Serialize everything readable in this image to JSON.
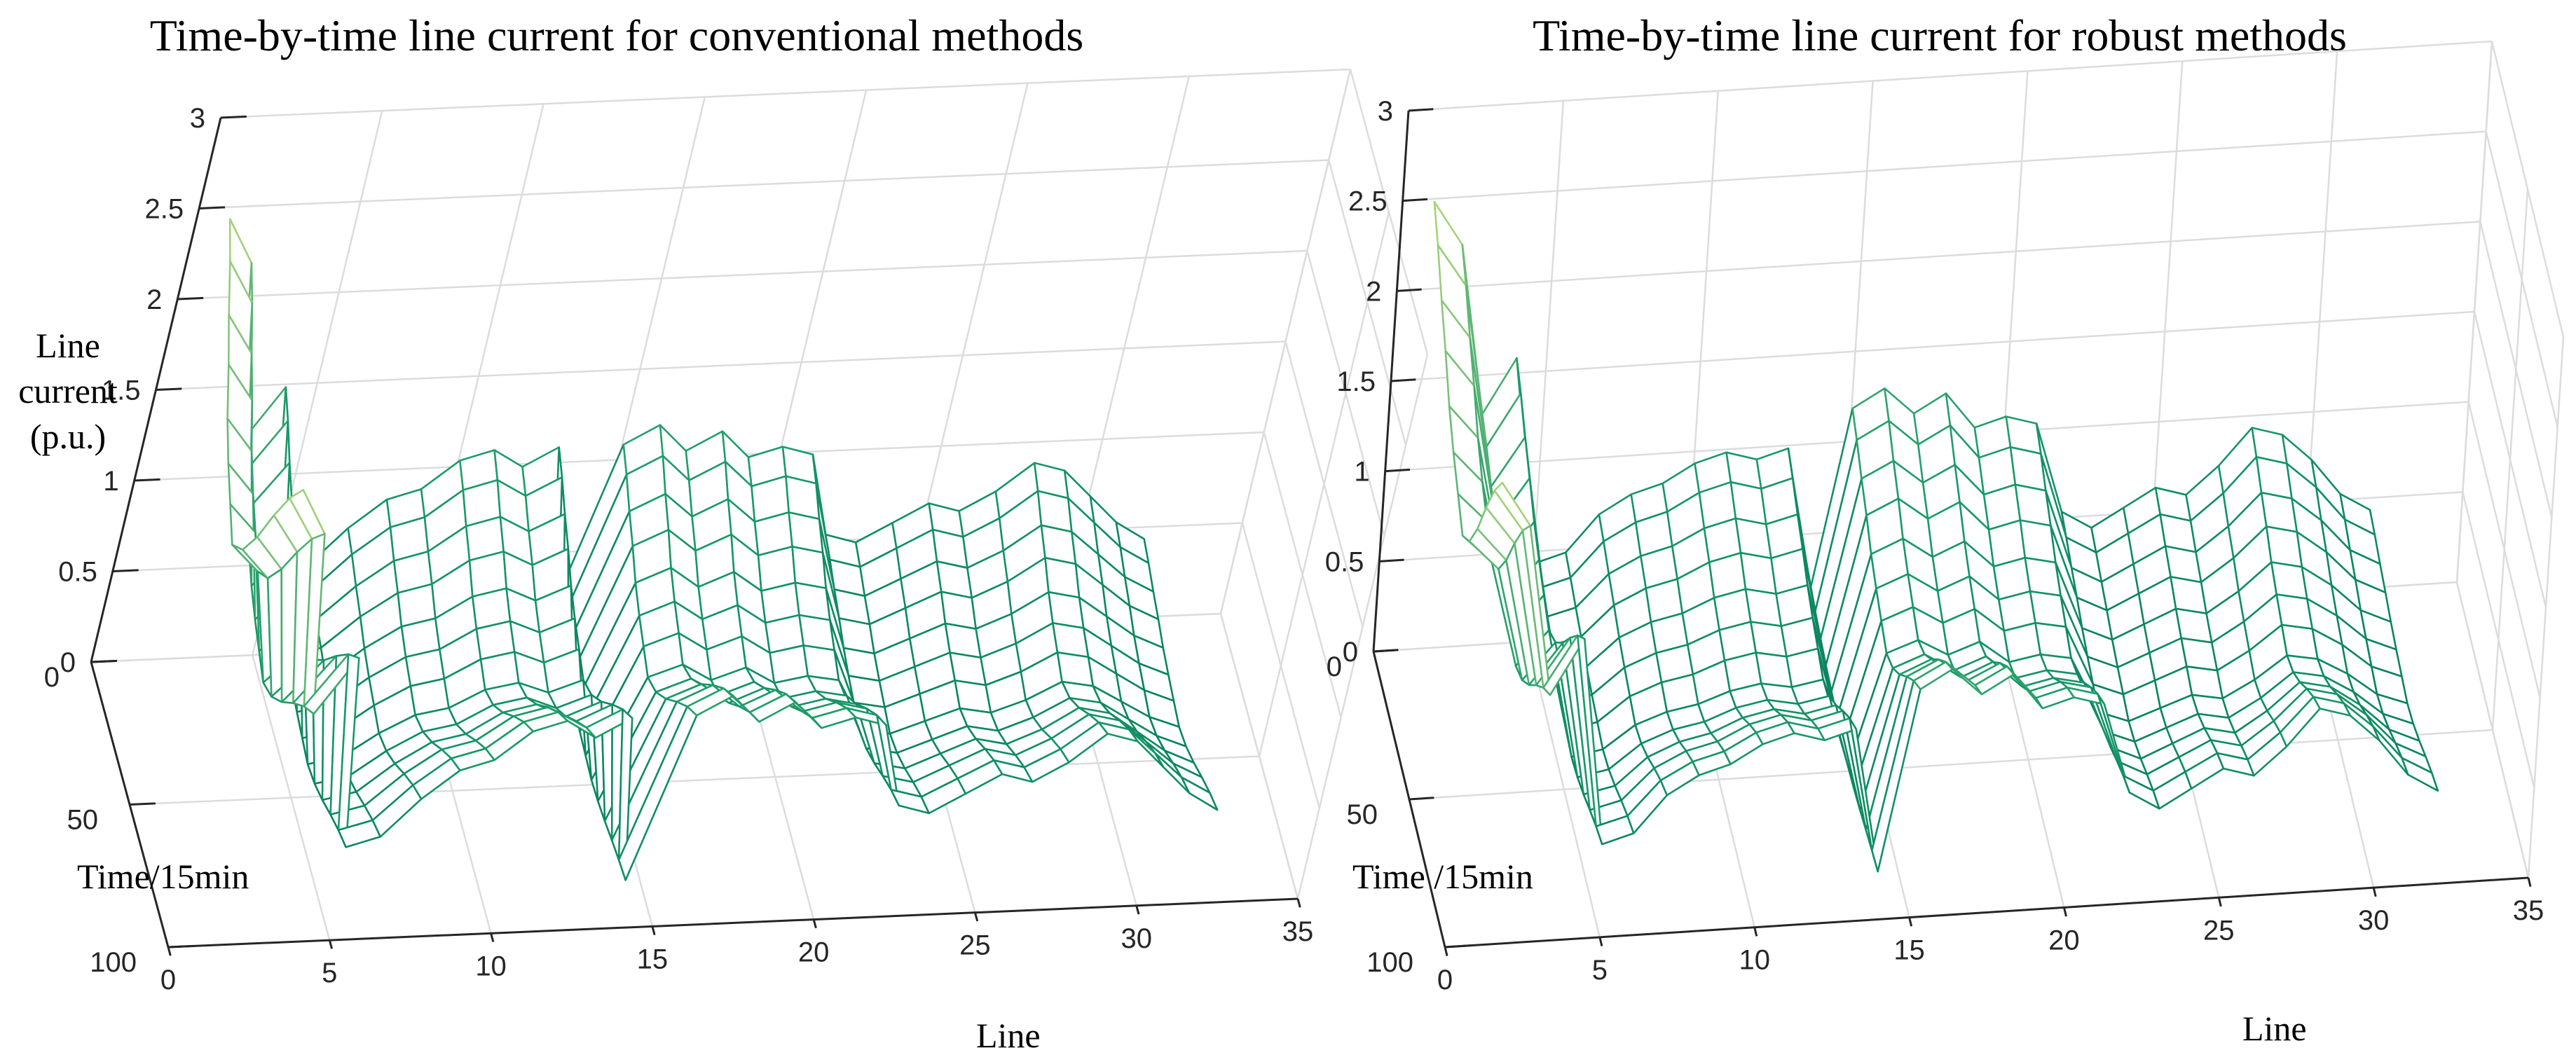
{
  "chart_data": [
    {
      "type": "surface",
      "title": "Time-by-time line current for conventional methods",
      "zlabel_lines": [
        "Line",
        "current",
        "(p.u.)"
      ],
      "ylabel": "Time/15min",
      "xlabel": "Line",
      "xlim": [
        0,
        35
      ],
      "ylim": [
        0,
        100
      ],
      "zlim": [
        0,
        3
      ],
      "xticks": [
        "0",
        "5",
        "10",
        "15",
        "20",
        "25",
        "30",
        "35"
      ],
      "yticks": [
        "0",
        "50",
        "100"
      ],
      "zticks": [
        "0",
        "0.5",
        "1",
        "1.5",
        "2",
        "2.5",
        "3"
      ],
      "colormap": [
        "#00785a",
        "#1b9b69",
        "#88c67c",
        "#e8f070"
      ],
      "lines": [
        1,
        2,
        3,
        4,
        5,
        6,
        7,
        8,
        9,
        10,
        11,
        12,
        13,
        14,
        15,
        16,
        17,
        18,
        19,
        20,
        21,
        22,
        23,
        24,
        25,
        26,
        27,
        28,
        29,
        30,
        31,
        32
      ],
      "time_points": [
        1,
        8,
        16,
        24,
        32,
        40,
        48,
        56,
        64,
        72,
        80,
        88,
        96
      ],
      "profiles": {
        "peak_current": [
          2.45,
          2.2,
          1.2,
          1.5,
          0.45,
          0.5,
          0.7,
          0.85,
          0.9,
          1.05,
          1.1,
          1.0,
          1.1,
          0.2,
          1.1,
          1.2,
          1.05,
          1.15,
          1.0,
          1.05,
          1.0,
          0.55,
          0.5,
          0.6,
          0.7,
          0.65,
          0.75,
          0.9,
          0.85,
          0.7,
          0.55,
          0.45
        ],
        "time_scale": [
          1.0,
          0.95,
          0.88,
          0.82,
          0.75,
          0.7,
          0.66,
          0.62,
          0.66,
          0.74,
          0.84,
          0.93,
          1.0
        ]
      }
    },
    {
      "type": "surface",
      "title": "Time-by-time line current for robust methods",
      "zlabel_lines": [],
      "ylabel": "Time /15min",
      "xlabel": "Line",
      "xlim": [
        0,
        35
      ],
      "ylim": [
        0,
        100
      ],
      "zlim": [
        0,
        3
      ],
      "xticks": [
        "0",
        "5",
        "10",
        "15",
        "20",
        "25",
        "30",
        "35"
      ],
      "yticks": [
        "0",
        "50",
        "100"
      ],
      "zticks": [
        "0",
        "0.5",
        "1",
        "1.5",
        "2",
        "2.5",
        "3"
      ],
      "colormap": [
        "#00785a",
        "#1b9b69",
        "#88c67c",
        "#e8f070"
      ],
      "lines": [
        1,
        2,
        3,
        4,
        5,
        6,
        7,
        8,
        9,
        10,
        11,
        12,
        13,
        14,
        15,
        16,
        17,
        18,
        19,
        20,
        21,
        22,
        23,
        24,
        25,
        26,
        27,
        28,
        29,
        30,
        31,
        32
      ],
      "time_points": [
        1,
        8,
        16,
        24,
        32,
        40,
        48,
        56,
        64,
        72,
        80,
        88,
        96
      ],
      "profiles": {
        "peak_current": [
          2.5,
          2.25,
          1.3,
          1.6,
          0.45,
          0.5,
          0.7,
          0.8,
          0.85,
          0.95,
          1.0,
          0.95,
          1.0,
          0.2,
          1.2,
          1.3,
          1.15,
          1.25,
          1.05,
          1.1,
          1.05,
          0.55,
          0.45,
          0.55,
          0.65,
          0.6,
          0.75,
          0.95,
          0.9,
          0.75,
          0.55,
          0.45
        ],
        "time_scale": [
          1.0,
          0.95,
          0.88,
          0.82,
          0.75,
          0.7,
          0.66,
          0.62,
          0.66,
          0.74,
          0.84,
          0.93,
          1.0
        ]
      }
    }
  ]
}
